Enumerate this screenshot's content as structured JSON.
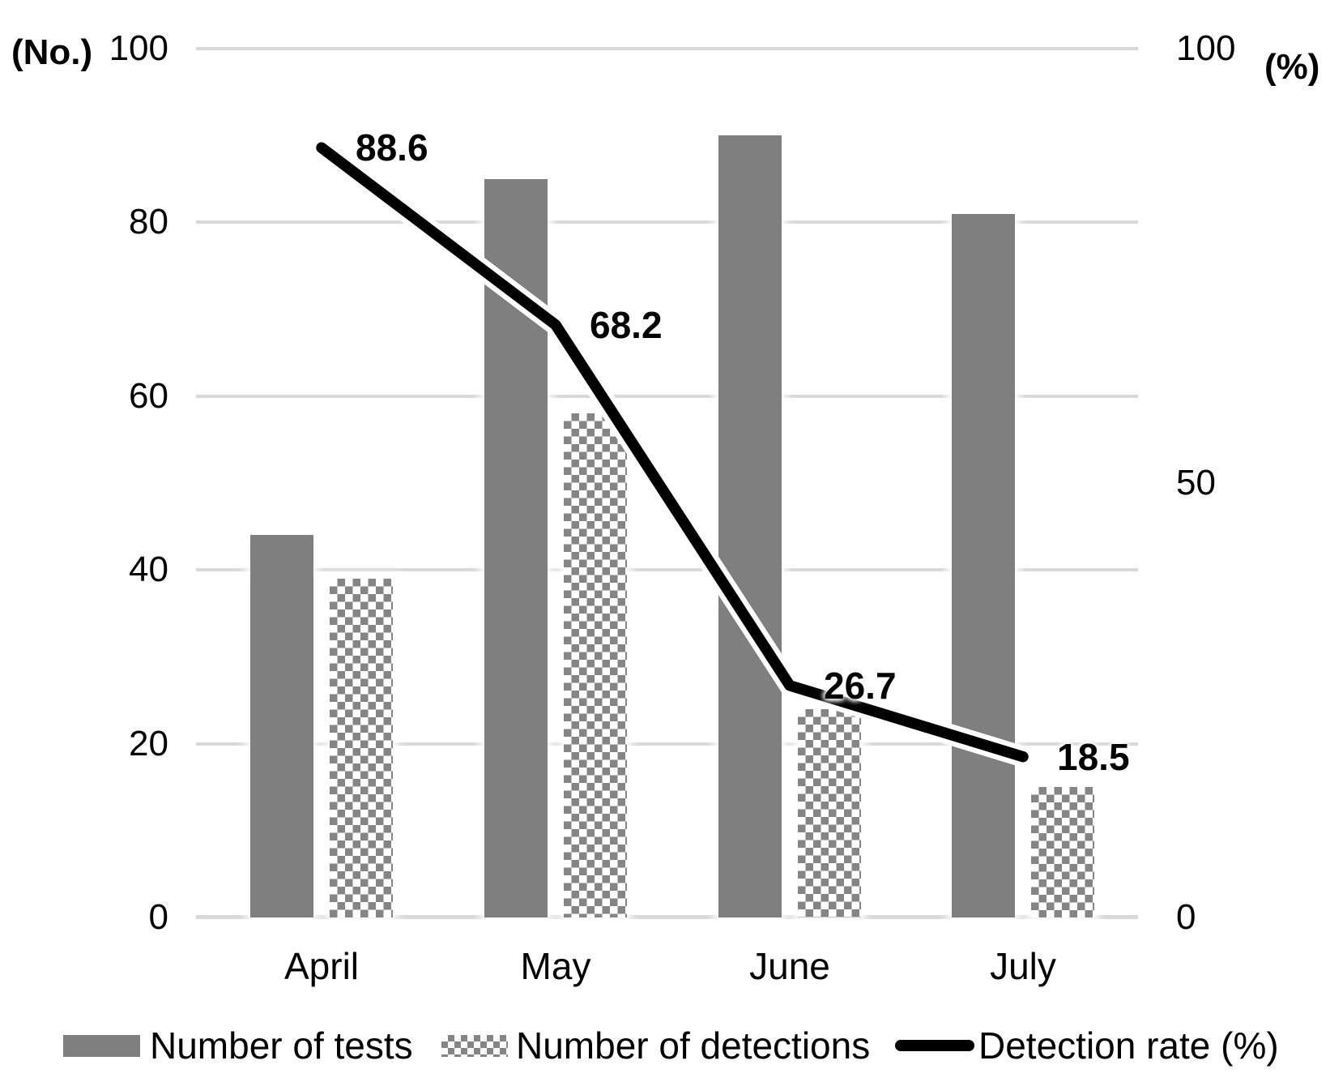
{
  "chart_data": {
    "type": "combo-bar-line",
    "categories": [
      "April",
      "May",
      "June",
      "July"
    ],
    "series": [
      {
        "name": "Number of tests",
        "type": "bar",
        "pattern": "solid",
        "axis": "left",
        "values": [
          44,
          85,
          90,
          81
        ]
      },
      {
        "name": "Number of detections",
        "type": "bar",
        "pattern": "checker",
        "axis": "left",
        "values": [
          39,
          58,
          24,
          15
        ]
      },
      {
        "name": "Detection rate (%)",
        "type": "line",
        "axis": "right",
        "values": [
          88.6,
          68.2,
          26.7,
          18.5
        ],
        "point_labels": [
          "88.6",
          "68.2",
          "26.7",
          "18.5"
        ]
      }
    ],
    "left_axis": {
      "unit": "(No.)",
      "range": [
        0,
        100
      ],
      "ticks": [
        0,
        20,
        40,
        60,
        80,
        100
      ]
    },
    "right_axis": {
      "unit": "(%)",
      "range": [
        0,
        100
      ],
      "ticks": [
        0,
        50,
        100
      ]
    },
    "grid": "horizontal",
    "legend_position": "bottom",
    "colors": {
      "bar_solid": "#7f7f7f",
      "bar_checker_fg": "#858585",
      "line": "#000000",
      "gridline": "#d9d9d9",
      "text": "#000000"
    }
  }
}
